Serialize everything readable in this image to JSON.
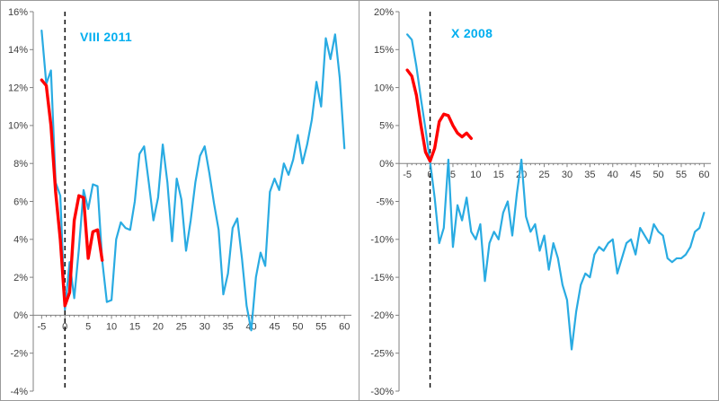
{
  "chart_data": [
    {
      "type": "line",
      "title": "VIII 2011",
      "title_color": "#00AEEF",
      "xlabel": "",
      "ylabel": "",
      "xlim": [
        -6.8,
        61.5
      ],
      "ylim": [
        -4,
        16
      ],
      "grid": false,
      "legend": "none",
      "axis_color": "#808080",
      "label_color": "#404040",
      "yticks": [
        -4,
        -2,
        0,
        2,
        4,
        6,
        8,
        10,
        12,
        14,
        16
      ],
      "ytick_labels": [
        "-4%",
        "-2%",
        "0%",
        "2%",
        "4%",
        "6%",
        "8%",
        "10%",
        "12%",
        "14%",
        "16%"
      ],
      "xticks": [
        -5,
        0,
        5,
        10,
        15,
        20,
        25,
        30,
        35,
        40,
        45,
        50,
        55,
        60
      ],
      "annotations": {
        "vline_x": 0,
        "vline_style": "dashed",
        "vline_color": "#000000"
      },
      "series": [
        {
          "name": "recovery-path-blue",
          "color": "#29ABE2",
          "width": 2.2,
          "x": [
            -5,
            -4,
            -3,
            -2,
            -1,
            0,
            1,
            2,
            3,
            4,
            5,
            6,
            7,
            8,
            9,
            10,
            11,
            12,
            13,
            14,
            15,
            16,
            17,
            18,
            19,
            20,
            21,
            22,
            23,
            24,
            25,
            26,
            27,
            28,
            29,
            30,
            31,
            32,
            33,
            34,
            35,
            36,
            37,
            38,
            39,
            40,
            41,
            42,
            43,
            44,
            45,
            46,
            47,
            48,
            49,
            50,
            51,
            52,
            53,
            54,
            55,
            56,
            57,
            58,
            59,
            60
          ],
          "values": [
            15.0,
            12.2,
            12.9,
            7.0,
            6.3,
            0.3,
            2.8,
            0.9,
            3.5,
            6.6,
            5.6,
            6.9,
            6.8,
            2.9,
            0.7,
            0.8,
            4.0,
            4.9,
            4.6,
            4.5,
            6.0,
            8.5,
            8.9,
            7.0,
            5.0,
            6.2,
            9.0,
            7.0,
            3.9,
            7.2,
            6.1,
            3.4,
            5.0,
            7.0,
            8.4,
            8.9,
            7.5,
            5.9,
            4.5,
            1.1,
            2.2,
            4.6,
            5.1,
            3.0,
            0.5,
            -0.8,
            2.0,
            3.3,
            2.6,
            6.5,
            7.2,
            6.6,
            8.0,
            7.4,
            8.2,
            9.5,
            8.0,
            9.0,
            10.3,
            12.3,
            11.0,
            14.6,
            13.5,
            14.8,
            12.5,
            8.8
          ]
        },
        {
          "name": "current-episode-red",
          "color": "#FF0000",
          "width": 3.4,
          "x": [
            -5,
            -4,
            -3,
            -2,
            -1,
            0,
            1,
            2,
            3,
            4,
            5,
            6,
            7,
            8
          ],
          "values": [
            12.4,
            12.1,
            10.0,
            6.5,
            4.0,
            0.5,
            1.2,
            5.0,
            6.3,
            6.2,
            3.0,
            4.4,
            4.5,
            2.9
          ]
        }
      ]
    },
    {
      "type": "line",
      "title": "X 2008",
      "title_color": "#00AEEF",
      "xlabel": "",
      "ylabel": "",
      "xlim": [
        -6.8,
        61.5
      ],
      "ylim": [
        -30,
        20
      ],
      "grid": false,
      "legend": "none",
      "axis_color": "#808080",
      "label_color": "#404040",
      "yticks": [
        -30,
        -25,
        -20,
        -15,
        -10,
        -5,
        0,
        5,
        10,
        15,
        20
      ],
      "ytick_labels": [
        "-30%",
        "-25%",
        "-20%",
        "-15%",
        "-10%",
        "-5%",
        "0%",
        "5%",
        "10%",
        "15%",
        "20%"
      ],
      "xticks": [
        -5,
        0,
        5,
        10,
        15,
        20,
        25,
        30,
        35,
        40,
        45,
        50,
        55,
        60
      ],
      "annotations": {
        "vline_x": 0,
        "vline_style": "dashed",
        "vline_color": "#000000"
      },
      "series": [
        {
          "name": "recovery-path-blue",
          "color": "#29ABE2",
          "width": 2.2,
          "x": [
            -5,
            -4,
            -3,
            -2,
            -1,
            0,
            1,
            2,
            3,
            4,
            5,
            6,
            7,
            8,
            9,
            10,
            11,
            12,
            13,
            14,
            15,
            16,
            17,
            18,
            19,
            20,
            21,
            22,
            23,
            24,
            25,
            26,
            27,
            28,
            29,
            30,
            31,
            32,
            33,
            34,
            35,
            36,
            37,
            38,
            39,
            40,
            41,
            42,
            43,
            44,
            45,
            46,
            47,
            48,
            49,
            50,
            51,
            52,
            53,
            54,
            55,
            56,
            57,
            58,
            59,
            60
          ],
          "values": [
            17.0,
            16.3,
            12.8,
            8.5,
            4.5,
            0.2,
            -4.5,
            -10.5,
            -8.5,
            0.5,
            -11.0,
            -5.5,
            -7.5,
            -4.5,
            -9.0,
            -10.0,
            -8.0,
            -15.5,
            -10.5,
            -9.0,
            -10.0,
            -6.5,
            -5.0,
            -9.5,
            -4.0,
            0.5,
            -7.0,
            -9.0,
            -8.0,
            -11.5,
            -9.5,
            -14.0,
            -10.5,
            -12.5,
            -16.0,
            -18.0,
            -24.5,
            -19.5,
            -16.0,
            -14.5,
            -15.0,
            -12.0,
            -11.0,
            -11.5,
            -10.5,
            -10.0,
            -14.5,
            -12.5,
            -10.5,
            -10.0,
            -12.0,
            -8.5,
            -9.5,
            -10.5,
            -8.0,
            -9.0,
            -9.5,
            -12.5,
            -13.0,
            -12.5,
            -12.5,
            -12.0,
            -11.0,
            -9.0,
            -8.5,
            -6.5
          ]
        },
        {
          "name": "current-episode-red",
          "color": "#FF0000",
          "width": 3.4,
          "x": [
            -5,
            -4,
            -3,
            -2,
            -1,
            0,
            1,
            2,
            3,
            4,
            5,
            6,
            7,
            8,
            9
          ],
          "values": [
            12.3,
            11.5,
            9.0,
            5.0,
            1.5,
            0.3,
            2.0,
            5.5,
            6.5,
            6.3,
            5.0,
            4.0,
            3.5,
            4.0,
            3.3
          ]
        }
      ]
    }
  ]
}
